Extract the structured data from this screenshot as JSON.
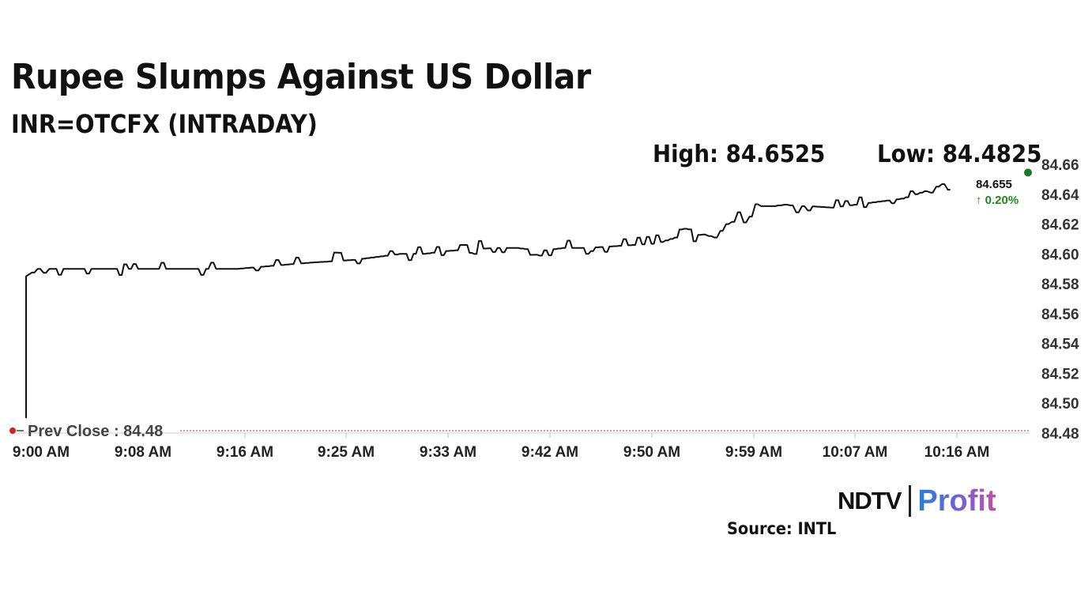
{
  "header": {
    "title": "Rupee Slumps Against US Dollar",
    "subtitle": "INR=OTCFX (INTRADAY)",
    "high_label": "High: 84.6525",
    "low_label": "Low: 84.4825"
  },
  "chart_data": {
    "type": "line",
    "series": [
      {
        "x": [
          "9:00 AM",
          "9:00 AM",
          "9:01 AM",
          "9:02 AM",
          "9:04 AM",
          "9:06 AM",
          "9:08 AM",
          "9:10 AM",
          "9:12 AM",
          "9:15 AM",
          "9:18 AM",
          "9:21 AM",
          "9:24 AM",
          "9:26 AM",
          "9:28 AM",
          "9:30 AM",
          "9:32 AM",
          "9:34 AM",
          "9:36 AM",
          "9:38 AM",
          "9:40 AM",
          "9:42 AM",
          "9:44 AM",
          "9:46 AM",
          "9:48 AM",
          "9:50 AM",
          "9:52 AM",
          "9:54 AM",
          "9:56 AM",
          "9:58 AM",
          "9:59 AM",
          "10:00 AM",
          "10:01 AM",
          "10:02 AM",
          "10:03 AM",
          "10:04 AM",
          "10:05 AM",
          "10:06 AM",
          "10:07 AM",
          "10:09 AM",
          "10:11 AM",
          "10:13 AM",
          "10:15 AM",
          "10:17 AM",
          "10:18 AM",
          "10:19 AM"
        ],
        "values": [
          84.49,
          84.585,
          84.59,
          84.59,
          84.59,
          84.59,
          84.59,
          84.59,
          84.59,
          84.59,
          84.59,
          84.592,
          84.594,
          84.595,
          84.596,
          84.598,
          84.6,
          84.6,
          84.602,
          84.603,
          84.604,
          84.604,
          84.602,
          84.604,
          84.604,
          84.605,
          84.606,
          84.607,
          84.612,
          84.613,
          84.611,
          84.62,
          84.623,
          84.625,
          84.632,
          84.632,
          84.633,
          84.632,
          84.632,
          84.631,
          84.633,
          84.635,
          84.637,
          84.642,
          84.645,
          84.643
        ]
      }
    ],
    "last_value": "84.655",
    "change_pct": "↑ 0.20%",
    "prev_close_label": "Prev Close : 84.48",
    "prev_close": 84.48,
    "x_ticks": [
      "9:00 AM",
      "9:08 AM",
      "9:16 AM",
      "9:25 AM",
      "9:33 AM",
      "9:42 AM",
      "9:50 AM",
      "9:59 AM",
      "10:07 AM",
      "10:16 AM"
    ],
    "y_ticks": [
      "84.66",
      "84.64",
      "84.62",
      "84.60",
      "84.58",
      "84.56",
      "84.54",
      "84.52",
      "84.50",
      "84.48"
    ],
    "ylim": [
      84.48,
      84.66
    ],
    "grid": false,
    "colors": {
      "line": "#111111",
      "prev_close": "#d61f1f",
      "up": "#1a8a1a",
      "end_dot": "#1a7a2a"
    }
  },
  "brand": {
    "ndtv": "NDTV",
    "profit": "Profit"
  },
  "source": "Source: INTL"
}
